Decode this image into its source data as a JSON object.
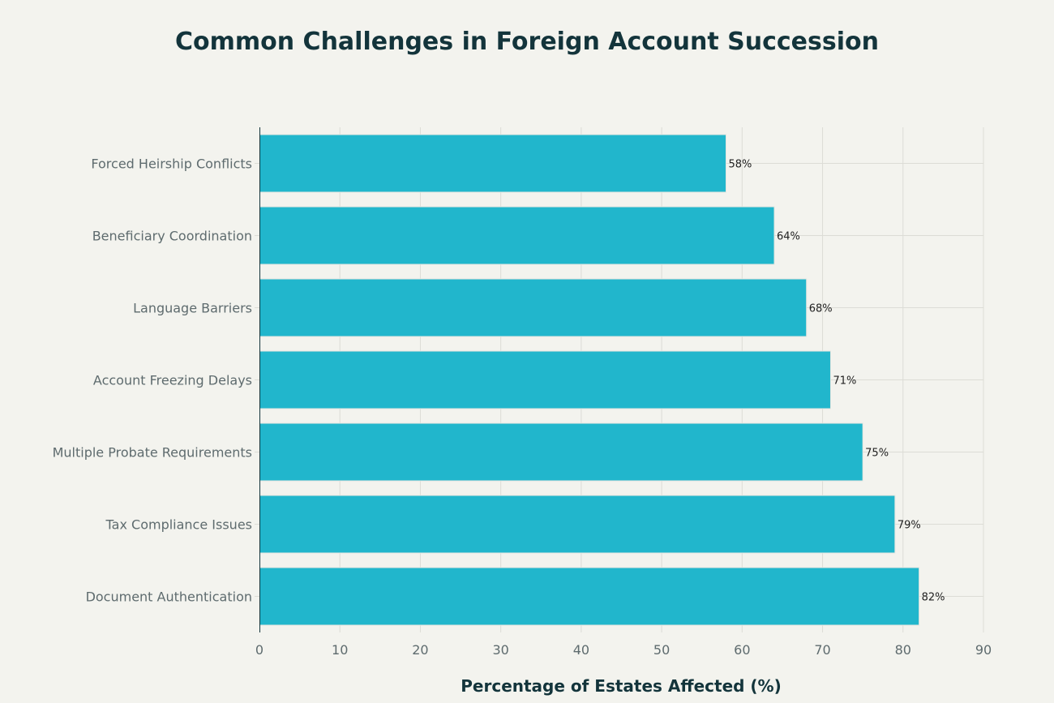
{
  "chart_data": {
    "type": "bar",
    "orientation": "horizontal",
    "title": "Common Challenges in Foreign Account Succession",
    "xlabel": "Percentage of Estates Affected (%)",
    "ylabel": "",
    "categories": [
      "Forced Heirship Conflicts",
      "Beneficiary Coordination",
      "Language Barriers",
      "Account Freezing Delays",
      "Multiple Probate Requirements",
      "Tax Compliance Issues",
      "Document Authentication"
    ],
    "values": [
      58,
      64,
      68,
      71,
      75,
      79,
      82
    ],
    "data_labels": [
      "58%",
      "64%",
      "68%",
      "71%",
      "75%",
      "79%",
      "82%"
    ],
    "xlim": [
      0,
      90
    ],
    "xticks": [
      0,
      10,
      20,
      30,
      40,
      50,
      60,
      70,
      80,
      90
    ],
    "grid": true,
    "colors": {
      "bar": "#21b6cc",
      "background": "#f3f3ee",
      "title": "#13343b",
      "tick_label": "#5e6b6e",
      "grid": "#dcdcd6"
    }
  }
}
